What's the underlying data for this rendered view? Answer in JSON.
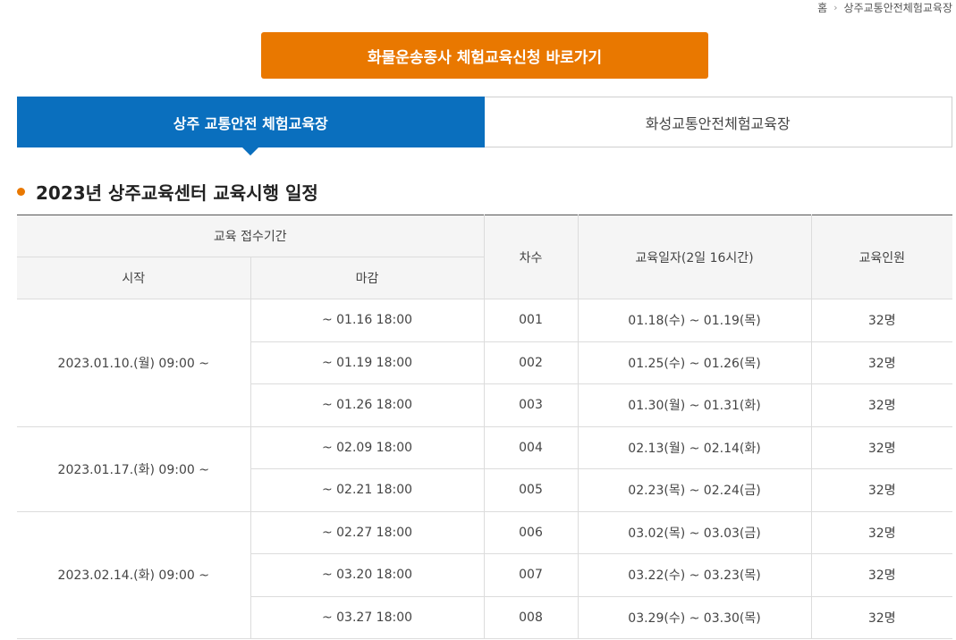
{
  "breadcrumb": {
    "home": "홈",
    "separator": "›",
    "current": "상주교통안전체험교육장"
  },
  "apply_button": {
    "label": "화물운송종사 체험교육신청 바로가기"
  },
  "tabs": [
    {
      "label": "상주 교통안전 체험교육장",
      "active": true
    },
    {
      "label": "화성교통안전체험교육장",
      "active": false
    }
  ],
  "section": {
    "title": "2023년 상주교육센터 교육시행 일정"
  },
  "table": {
    "headers": {
      "period": "교육 접수기간",
      "start": "시작",
      "end": "마감",
      "round": "차수",
      "date": "교육일자(2일 16시간)",
      "capacity": "교육인원"
    },
    "groups": [
      {
        "start": "2023.01.10.(월) 09:00 ~",
        "rows": [
          {
            "end": "~ 01.16 18:00",
            "round": "001",
            "date": "01.18(수) ~ 01.19(목)",
            "capacity": "32명"
          },
          {
            "end": "~ 01.19 18:00",
            "round": "002",
            "date": "01.25(수) ~ 01.26(목)",
            "capacity": "32명"
          },
          {
            "end": "~ 01.26 18:00",
            "round": "003",
            "date": "01.30(월) ~ 01.31(화)",
            "capacity": "32명"
          }
        ]
      },
      {
        "start": "2023.01.17.(화) 09:00 ~",
        "rows": [
          {
            "end": "~ 02.09 18:00",
            "round": "004",
            "date": "02.13(월) ~ 02.14(화)",
            "capacity": "32명"
          },
          {
            "end": "~ 02.21 18:00",
            "round": "005",
            "date": "02.23(목) ~ 02.24(금)",
            "capacity": "32명"
          }
        ]
      },
      {
        "start": "2023.02.14.(화) 09:00 ~",
        "rows": [
          {
            "end": "~ 02.27 18:00",
            "round": "006",
            "date": "03.02(목) ~ 03.03(금)",
            "capacity": "32명"
          },
          {
            "end": "~ 03.20 18:00",
            "round": "007",
            "date": "03.22(수) ~ 03.23(목)",
            "capacity": "32명"
          },
          {
            "end": "~ 03.27 18:00",
            "round": "008",
            "date": "03.29(수) ~ 03.30(목)",
            "capacity": "32명"
          }
        ]
      }
    ]
  },
  "colors": {
    "accent_orange": "#e97800",
    "tab_blue": "#0a6fbe"
  }
}
